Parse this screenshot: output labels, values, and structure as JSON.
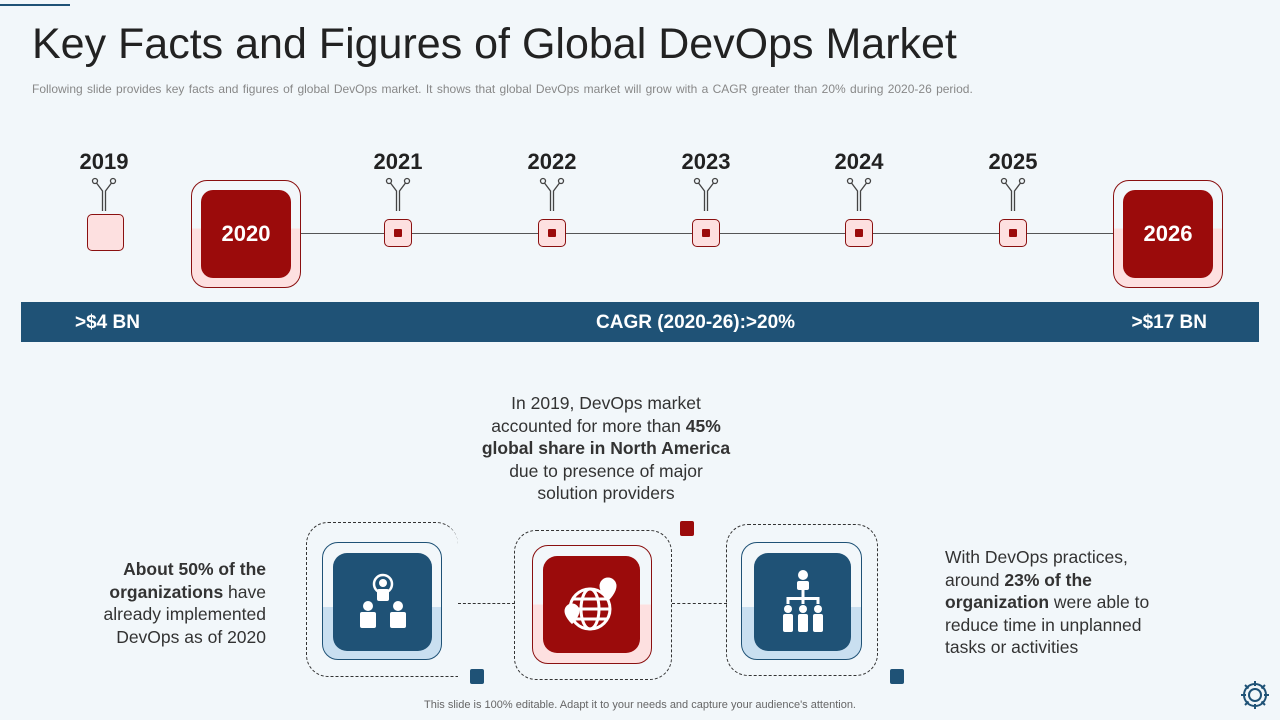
{
  "header": {
    "title": "Key Facts and Figures of Global DevOps Market",
    "subtitle": "Following slide provides  key facts and figures  of global DevOps  market. It shows that global DevOps  market will grow  with a CAGR greater  than 20% during 2020-26  period."
  },
  "timeline": {
    "years": [
      "2019",
      "2021",
      "2022",
      "2023",
      "2024",
      "2025"
    ],
    "highlight_start": "2020",
    "highlight_end": "2026"
  },
  "bar": {
    "left": ">$4 BN",
    "center": "CAGR (2020-26):>20%",
    "right": ">$17 BN"
  },
  "center_fact": {
    "l1": "In 2019, DevOps market",
    "l2a": "accounted for more than ",
    "l2b": "45%",
    "l3": "global share in North America",
    "l4": "due to presence of major",
    "l5": "solution providers"
  },
  "left_fact": {
    "l1": "About 50% of the",
    "l2a": "organizations",
    "l2b": " have",
    "l3": "already implemented",
    "l4": "DevOps as of 2020"
  },
  "right_fact": {
    "l1": "With DevOps practices,",
    "l2a": "around ",
    "l2b": "23% of the",
    "l3a": "organization",
    "l3b": " were able to",
    "l4": "reduce time in unplanned",
    "l5": "tasks or activities"
  },
  "footer": "This slide is 100% editable. Adapt it to your needs and capture your audience's attention.",
  "colors": {
    "red": "#9b0b0b",
    "blue": "#1f5276",
    "pink": "#fde0e0",
    "lightblue": "#c9dff0"
  },
  "icons": [
    "target-team-icon",
    "globe-location-icon",
    "org-hierarchy-icon",
    "gear-icon"
  ]
}
